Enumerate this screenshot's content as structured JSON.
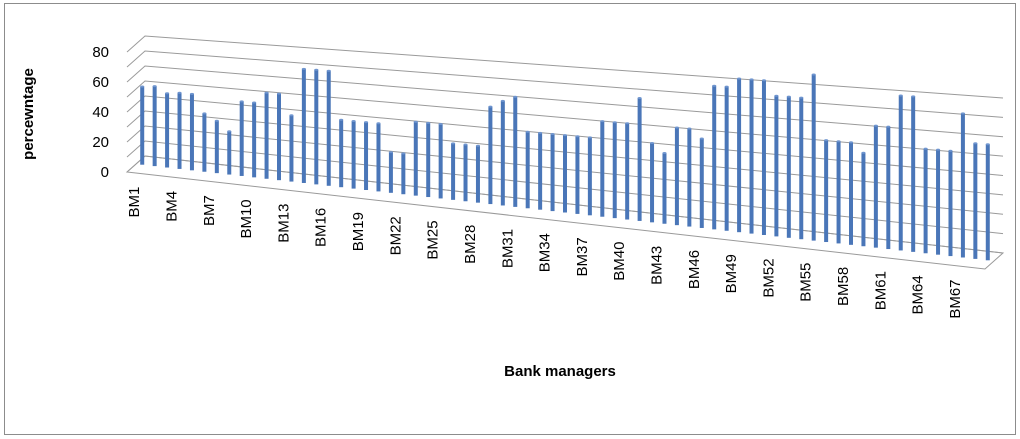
{
  "chart_data": {
    "type": "bar",
    "title": "",
    "xlabel": "Bank managers",
    "ylabel": "percewntage",
    "ylim": [
      0,
      80
    ],
    "y_ticks": [
      0,
      20,
      40,
      60,
      80
    ],
    "grid": "horizontal",
    "style": "3d-cylinder",
    "bar_color": "#4a76b8",
    "categories": [
      "BM1",
      "BM2",
      "BM3",
      "BM4",
      "BM5",
      "BM6",
      "BM7",
      "BM8",
      "BM9",
      "BM10",
      "BM11",
      "BM12",
      "BM13",
      "BM14",
      "BM15",
      "BM16",
      "BM17",
      "BM18",
      "BM19",
      "BM20",
      "BM21",
      "BM22",
      "BM23",
      "BM24",
      "BM25",
      "BM26",
      "BM27",
      "BM28",
      "BM29",
      "BM30",
      "BM31",
      "BM32",
      "BM33",
      "BM34",
      "BM35",
      "BM36",
      "BM37",
      "BM38",
      "BM39",
      "BM40",
      "BM41",
      "BM42",
      "BM43",
      "BM44",
      "BM45",
      "BM46",
      "BM47",
      "BM48",
      "BM49",
      "BM50",
      "BM51",
      "BM52",
      "BM53",
      "BM54",
      "BM55",
      "BM56",
      "BM57",
      "BM58",
      "BM59",
      "BM60",
      "BM61",
      "BM62",
      "BM63",
      "BM64",
      "BM65",
      "BM66",
      "BM67",
      "BM68",
      "BM69"
    ],
    "x_tick_labels": [
      "BM1",
      "BM4",
      "BM7",
      "BM10",
      "BM13",
      "BM16",
      "BM19",
      "BM22",
      "BM25",
      "BM28",
      "BM31",
      "BM34",
      "BM37",
      "BM40",
      "BM43",
      "BM46",
      "BM49",
      "BM52",
      "BM55",
      "BM58",
      "BM61",
      "BM64",
      "BM67"
    ],
    "series": [
      {
        "values": [
          52,
          53,
          49,
          50,
          50,
          38,
          34,
          28,
          48,
          48,
          55,
          55,
          42,
          72,
          72,
          72,
          42,
          42,
          42,
          42,
          25,
          25,
          45,
          45,
          45,
          34,
          34,
          34,
          58,
          62,
          65,
          45,
          45,
          45,
          45,
          45,
          45,
          55,
          55,
          55,
          70,
          45,
          40,
          55,
          55,
          50,
          80,
          80,
          85,
          85,
          85,
          77,
          77,
          77,
          90,
          55,
          55,
          55,
          50,
          65,
          65,
          82,
          82,
          55,
          55,
          55,
          75,
          60,
          60
        ]
      }
    ]
  }
}
